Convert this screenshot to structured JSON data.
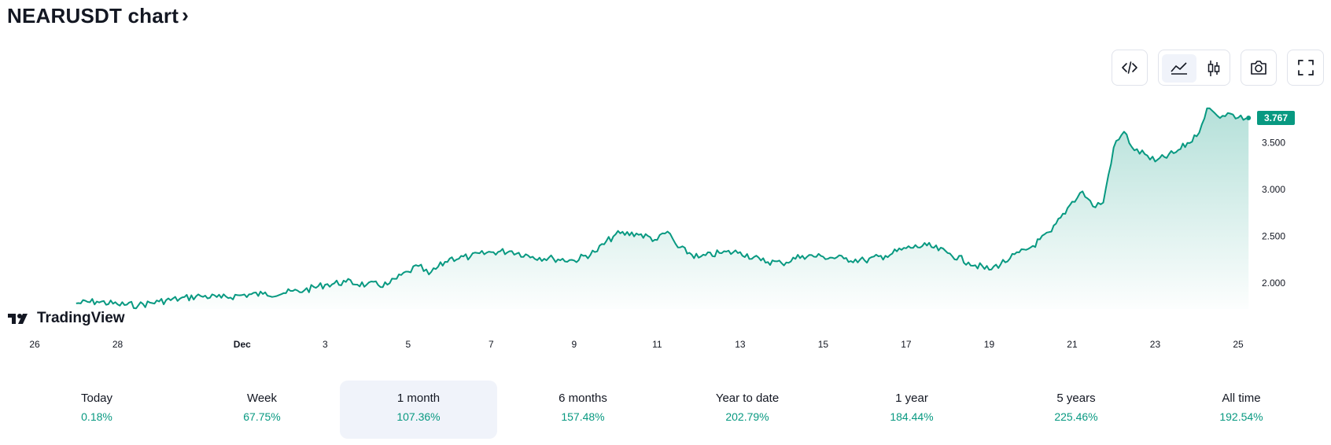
{
  "header": {
    "title": "NEARUSDT chart",
    "chevron": "›"
  },
  "toolbar": {
    "embed_icon": "embed-code-icon",
    "area_icon": "area-chart-icon",
    "candle_icon": "candlestick-icon",
    "snapshot_icon": "camera-icon",
    "fullscreen_icon": "fullscreen-icon"
  },
  "brand": {
    "logo_text": "TradingView"
  },
  "colors": {
    "line": "#089981",
    "badge": "#089981",
    "text": "#131722",
    "active_bg": "#f0f3fa"
  },
  "chart_data": {
    "type": "area",
    "title": "",
    "xlabel": "",
    "ylabel": "",
    "ylim": [
      1.72,
      4.02
    ],
    "x_ticks": [
      "26",
      "28",
      "Dec",
      "3",
      "5",
      "7",
      "9",
      "11",
      "13",
      "15",
      "17",
      "19",
      "21",
      "23",
      "25"
    ],
    "y_ticks": [
      2.0,
      2.5,
      3.0,
      3.5
    ],
    "y_tick_labels": [
      "2.000",
      "2.500",
      "3.000",
      "3.500"
    ],
    "last_value": 3.767,
    "last_value_label": "3.767",
    "series": [
      {
        "x": [
          "Nov 27 00:00",
          "Nov 27 12:00",
          "Nov 28 00:00",
          "Nov 28 12:00",
          "Nov 29 00:00",
          "Nov 29 12:00",
          "Nov 30 00:00",
          "Nov 30 12:00",
          "Dec 1 00:00",
          "Dec 1 12:00",
          "Dec 2 00:00",
          "Dec 2 12:00",
          "Dec 3 00:00",
          "Dec 3 12:00",
          "Dec 4 00:00",
          "Dec 4 12:00",
          "Dec 5 00:00",
          "Dec 5 06:00",
          "Dec 5 12:00",
          "Dec 6 00:00",
          "Dec 6 12:00",
          "Dec 7 00:00",
          "Dec 7 12:00",
          "Dec 8 00:00",
          "Dec 8 12:00",
          "Dec 9 00:00",
          "Dec 9 12:00",
          "Dec 10 00:00",
          "Dec 10 12:00",
          "Dec 11 00:00",
          "Dec 11 06:00",
          "Dec 11 12:00",
          "Dec 12 00:00",
          "Dec 12 12:00",
          "Dec 13 00:00",
          "Dec 13 12:00",
          "Dec 14 00:00",
          "Dec 14 12:00",
          "Dec 15 00:00",
          "Dec 15 12:00",
          "Dec 16 00:00",
          "Dec 16 12:00",
          "Dec 17 00:00",
          "Dec 17 12:00",
          "Dec 18 00:00",
          "Dec 18 12:00",
          "Dec 19 00:00",
          "Dec 19 12:00",
          "Dec 20 00:00",
          "Dec 20 12:00",
          "Dec 21 00:00",
          "Dec 21 06:00",
          "Dec 21 12:00",
          "Dec 21 18:00",
          "Dec 22 00:00",
          "Dec 22 06:00",
          "Dec 22 12:00",
          "Dec 22 18:00",
          "Dec 23 00:00",
          "Dec 23 12:00",
          "Dec 24 00:00",
          "Dec 24 06:00",
          "Dec 24 12:00",
          "Dec 24 18:00",
          "Dec 25 00:00",
          "Dec 25 06:00"
        ],
        "values": [
          1.78,
          1.8,
          1.77,
          1.76,
          1.8,
          1.83,
          1.86,
          1.84,
          1.87,
          1.88,
          1.89,
          1.92,
          1.98,
          2.01,
          1.98,
          1.98,
          2.12,
          2.18,
          2.09,
          2.26,
          2.28,
          2.33,
          2.34,
          2.28,
          2.26,
          2.24,
          2.33,
          2.52,
          2.53,
          2.46,
          2.55,
          2.38,
          2.27,
          2.32,
          2.33,
          2.24,
          2.21,
          2.29,
          2.28,
          2.26,
          2.24,
          2.29,
          2.37,
          2.4,
          2.32,
          2.22,
          2.14,
          2.26,
          2.38,
          2.55,
          2.87,
          2.98,
          2.82,
          2.86,
          3.45,
          3.62,
          3.42,
          3.38,
          3.3,
          3.4,
          3.57,
          3.87,
          3.79,
          3.82,
          3.77,
          3.767
        ]
      }
    ]
  },
  "periods": [
    {
      "label": "Today",
      "value": "0.18%"
    },
    {
      "label": "Week",
      "value": "67.75%"
    },
    {
      "label": "1 month",
      "value": "107.36%",
      "active": true
    },
    {
      "label": "6 months",
      "value": "157.48%"
    },
    {
      "label": "Year to date",
      "value": "202.79%"
    },
    {
      "label": "1 year",
      "value": "184.44%"
    },
    {
      "label": "5 years",
      "value": "225.46%"
    },
    {
      "label": "All time",
      "value": "192.54%"
    }
  ]
}
